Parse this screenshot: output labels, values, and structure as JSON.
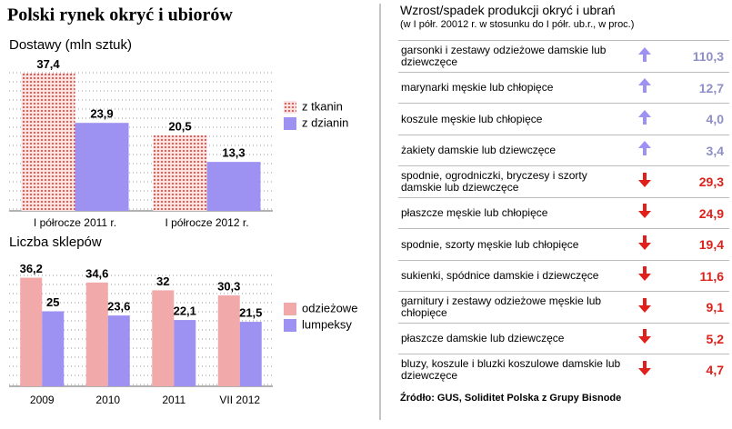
{
  "title": "Polski rynek okryć i ubiorów",
  "chart_data": [
    {
      "type": "bar",
      "title": "Dostawy (mln sztuk)",
      "categories": [
        "I półrocze 2011 r.",
        "I półrocze 2012 r."
      ],
      "ylim": [
        0,
        40
      ],
      "series": [
        {
          "name": "z tkanin",
          "color": "#e0302a",
          "pattern": "dots",
          "values": [
            37.4,
            20.5
          ],
          "value_labels": [
            "37,4",
            "20,5"
          ]
        },
        {
          "name": "z dzianin",
          "color": "#9d92f2",
          "values": [
            23.9,
            13.3
          ],
          "value_labels": [
            "23,9",
            "13,3"
          ]
        }
      ]
    },
    {
      "type": "bar",
      "title": "Liczba sklepów",
      "categories": [
        "2009",
        "2010",
        "2011",
        "VII 2012"
      ],
      "ylim": [
        0,
        40
      ],
      "series": [
        {
          "name": "odzieżowe",
          "color": "#f2a9a9",
          "values": [
            36.2,
            34.6,
            32,
            30.3
          ],
          "value_labels": [
            "36,2",
            "34,6",
            "32",
            "30,3"
          ]
        },
        {
          "name": "lumpeksy",
          "color": "#9d92f2",
          "values": [
            25,
            23.6,
            22.1,
            21.5
          ],
          "value_labels": [
            "25",
            "23,6",
            "22,1",
            "21,5"
          ]
        }
      ]
    }
  ],
  "table": {
    "title": "Wzrost/spadek produkcji okryć i ubrań",
    "subtitle": "(w I półr. 20012 r. w stosunku do I półr. ub.r., w proc.)",
    "rows": [
      {
        "label": "garsonki i zestawy odzieżowe damskie lub dziewczęce",
        "direction": "up",
        "value": "110,3"
      },
      {
        "label": "marynarki męskie lub chłopięce",
        "direction": "up",
        "value": "12,7"
      },
      {
        "label": "koszule męskie lub chłopięce",
        "direction": "up",
        "value": "4,0"
      },
      {
        "label": "żakiety damskie lub dziewczęce",
        "direction": "up",
        "value": "3,4"
      },
      {
        "label": "spodnie, ogrodniczki, bryczesy i szorty damskie lub dziewczęce",
        "direction": "down",
        "value": "29,3"
      },
      {
        "label": "płaszcze męskie lub chłopięce",
        "direction": "down",
        "value": "24,9"
      },
      {
        "label": "spodnie, szorty męskie lub chłopięce",
        "direction": "down",
        "value": "19,4"
      },
      {
        "label": "sukienki, spódnice damskie i dziewczęce",
        "direction": "down",
        "value": "11,6"
      },
      {
        "label": "garnitury i zestawy odzieżowe męskie lub chłopięce",
        "direction": "down",
        "value": "9,1"
      },
      {
        "label": "płaszcze damskie lub dziewczęce",
        "direction": "down",
        "value": "5,2"
      },
      {
        "label": "bluzy, koszule i bluzki koszulowe damskie lub dziewczęce",
        "direction": "down",
        "value": "4,7"
      }
    ]
  },
  "source": "Źródło: GUS, Soliditet Polska z Grupy Bisnode"
}
